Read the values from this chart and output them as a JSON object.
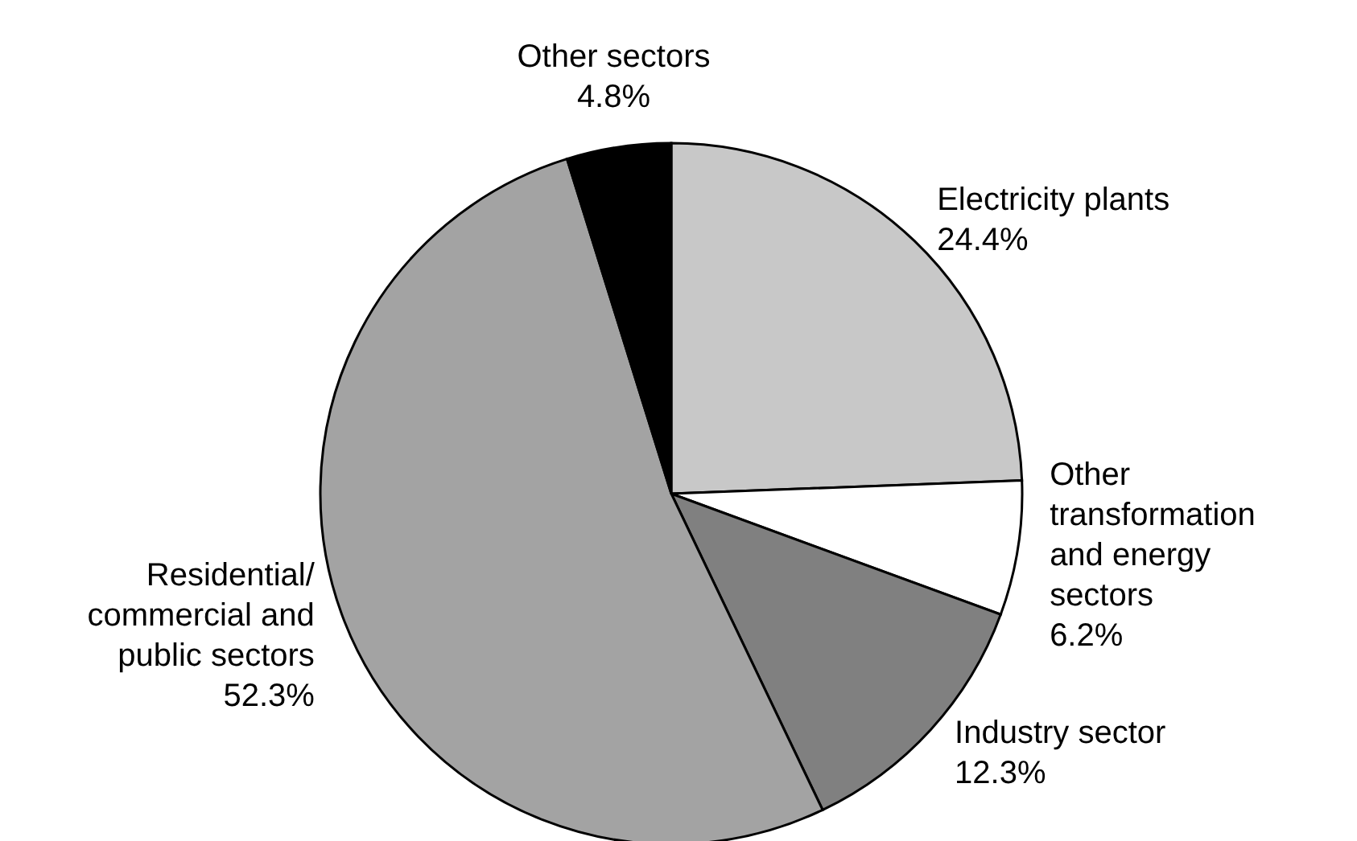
{
  "chart_data": {
    "type": "pie",
    "categories": [
      "Electricity plants",
      "Other transformation and energy sectors",
      "Industry sector",
      "Residential/ commercial and public sectors",
      "Other sectors"
    ],
    "values": [
      24.4,
      6.2,
      12.3,
      52.3,
      4.8
    ],
    "value_labels": [
      "24.4%",
      "6.2%",
      "12.3%",
      "52.3%",
      "4.8%"
    ],
    "colors": [
      "#c8c8c8",
      "#ffffff",
      "#808080",
      "#a3a3a3",
      "#000000"
    ],
    "legend": false
  }
}
